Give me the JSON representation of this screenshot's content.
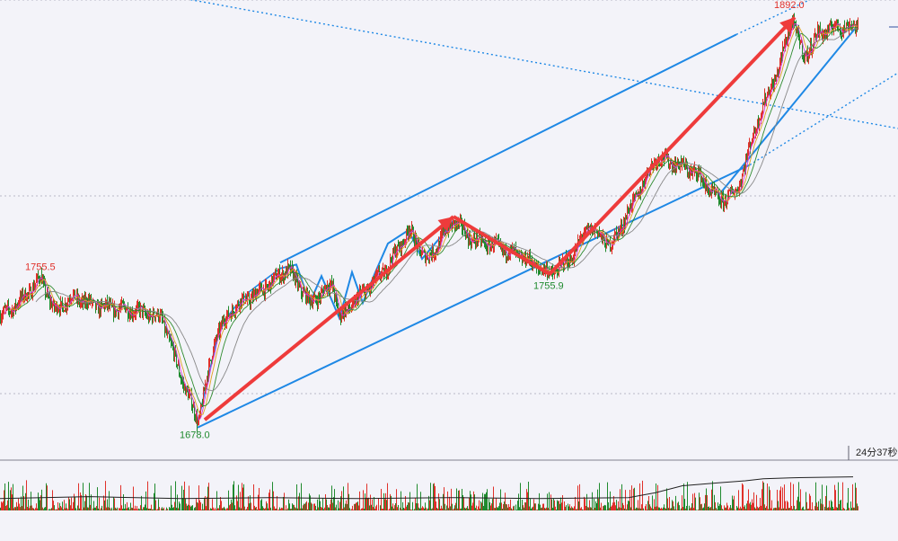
{
  "colors": {
    "background": "#f3f3f9",
    "up": "#e0302a",
    "down": "#1f8a2e",
    "trendline": "#1e88e5",
    "arrow": "#ee3b3b",
    "ma_fast": "#d43ad4",
    "ma_mid": "#e0a020",
    "ma_slow": "#2e8b2e",
    "ma_long": "#888888",
    "high_label": "#e0302a",
    "low_label": "#1f8a2e"
  },
  "timer_label": "24分37秒",
  "chart_data": {
    "type": "candlestick",
    "title": "",
    "xlabel": "",
    "ylabel": "",
    "ylim": [
      1660,
      1900
    ],
    "grid": true,
    "annotations": [
      {
        "text": "1755.5",
        "kind": "high",
        "price": 1755.5,
        "bar": 45
      },
      {
        "text": "1678.0",
        "kind": "low",
        "price": 1678.0,
        "bar": 220
      },
      {
        "text": "1755.9",
        "kind": "low",
        "price": 1755.9,
        "bar": 612
      },
      {
        "text": "1892.0",
        "kind": "high",
        "price": 1892.0,
        "bar": 882
      }
    ],
    "anchors": [
      [
        0,
        1735
      ],
      [
        20,
        1742
      ],
      [
        45,
        1755
      ],
      [
        60,
        1738
      ],
      [
        80,
        1745
      ],
      [
        110,
        1740
      ],
      [
        150,
        1738
      ],
      [
        180,
        1734
      ],
      [
        200,
        1705
      ],
      [
        220,
        1680
      ],
      [
        240,
        1725
      ],
      [
        260,
        1740
      ],
      [
        290,
        1748
      ],
      [
        320,
        1760
      ],
      [
        345,
        1742
      ],
      [
        370,
        1752
      ],
      [
        378,
        1734
      ],
      [
        400,
        1745
      ],
      [
        430,
        1760
      ],
      [
        455,
        1780
      ],
      [
        475,
        1764
      ],
      [
        505,
        1785
      ],
      [
        525,
        1775
      ],
      [
        550,
        1772
      ],
      [
        580,
        1766
      ],
      [
        612,
        1757
      ],
      [
        635,
        1765
      ],
      [
        655,
        1782
      ],
      [
        680,
        1772
      ],
      [
        700,
        1790
      ],
      [
        730,
        1818
      ],
      [
        750,
        1815
      ],
      [
        775,
        1810
      ],
      [
        800,
        1795
      ],
      [
        820,
        1800
      ],
      [
        845,
        1840
      ],
      [
        865,
        1862
      ],
      [
        882,
        1890
      ],
      [
        895,
        1870
      ],
      [
        910,
        1882
      ],
      [
        930,
        1886
      ],
      [
        955,
        1886
      ]
    ],
    "volume_overlay": [
      [
        0,
        12
      ],
      [
        100,
        14
      ],
      [
        200,
        12
      ],
      [
        300,
        13
      ],
      [
        400,
        12
      ],
      [
        500,
        13
      ],
      [
        600,
        12
      ],
      [
        700,
        13
      ],
      [
        730,
        18
      ],
      [
        760,
        25
      ],
      [
        800,
        28
      ],
      [
        830,
        30
      ],
      [
        850,
        32
      ],
      [
        880,
        33
      ],
      [
        950,
        34
      ]
    ]
  }
}
